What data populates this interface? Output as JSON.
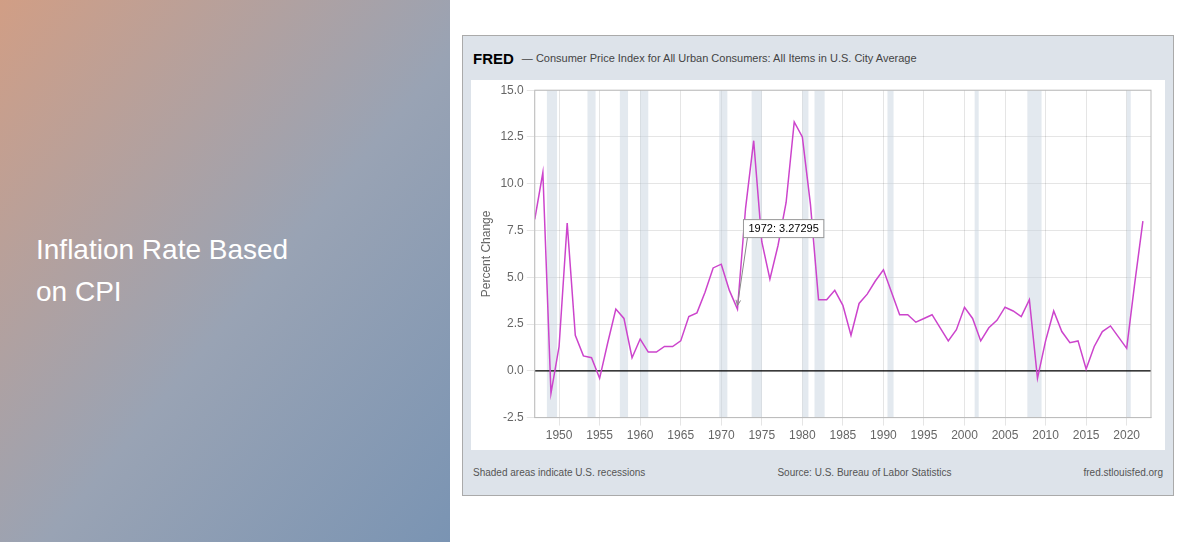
{
  "chart_data": {
    "type": "line",
    "title": "Inflation Rate Based\non CPI",
    "subtitle": [
      "FRED",
      "— Consumer Price Index for All Urban Consumers: All Items in U.S. City Average"
    ],
    "y_label": "Percent Change",
    "footer": [
      "Shaded areas indicate U.S. recessions",
      "Source: U.S. Bureau of Labor Statistics",
      "fred.stlouisfed.org"
    ],
    "x": [
      1947,
      1948,
      1949,
      1950,
      1951,
      1952,
      1953,
      1954,
      1955,
      1956,
      1957,
      1958,
      1959,
      1960,
      1961,
      1962,
      1963,
      1964,
      1965,
      1966,
      1967,
      1968,
      1969,
      1970,
      1971,
      1972,
      1973,
      1974,
      1975,
      1976,
      1977,
      1978,
      1979,
      1980,
      1981,
      1982,
      1983,
      1984,
      1985,
      1986,
      1987,
      1988,
      1989,
      1990,
      1991,
      1992,
      1993,
      1994,
      1995,
      1996,
      1997,
      1998,
      1999,
      2000,
      2001,
      2002,
      2003,
      2004,
      2005,
      2006,
      2007,
      2008,
      2009,
      2010,
      2011,
      2012,
      2013,
      2014,
      2015,
      2016,
      2017,
      2018,
      2019,
      2020,
      2021,
      2022
    ],
    "values": [
      8.1,
      10.6,
      -1.2,
      1.3,
      7.9,
      1.9,
      0.8,
      0.7,
      -0.4,
      1.5,
      3.3,
      2.8,
      0.7,
      1.7,
      1.0,
      1.0,
      1.3,
      1.3,
      1.6,
      2.9,
      3.1,
      4.2,
      5.5,
      5.7,
      4.3,
      3.3,
      8.7,
      12.3,
      6.9,
      4.9,
      6.7,
      9.0,
      13.3,
      12.5,
      8.9,
      3.8,
      3.8,
      4.3,
      3.5,
      1.9,
      3.6,
      4.1,
      4.8,
      5.4,
      4.2,
      3.0,
      3.0,
      2.6,
      2.8,
      3.0,
      2.3,
      1.6,
      2.2,
      3.4,
      2.8,
      1.6,
      2.3,
      2.7,
      3.4,
      3.2,
      2.9,
      3.8,
      -0.4,
      1.6,
      3.2,
      2.1,
      1.5,
      1.6,
      0.1,
      1.3,
      2.1,
      2.4,
      1.8,
      1.2,
      4.7,
      8.0
    ],
    "color": "#cc44cc",
    "xlim": [
      1947,
      2023
    ],
    "xticks": [
      1950,
      1955,
      1960,
      1965,
      1970,
      1975,
      1980,
      1985,
      1990,
      1995,
      2000,
      2005,
      2010,
      2015,
      2020
    ],
    "ylim": [
      -2.5,
      15.0
    ],
    "yticks": [
      -2.5,
      {
        "value": 0,
        "label": "0.0"
      },
      2.5,
      {
        "value": 5,
        "label": "5.0"
      },
      7.5,
      {
        "value": 10,
        "label": "10.0"
      },
      12.5,
      {
        "value": 15,
        "label": "15.0"
      }
    ],
    "grid": true,
    "reference_lines": [
      0
    ],
    "recession_bands": [
      [
        1948.5,
        1949.75
      ],
      [
        1953.5,
        1954.5
      ],
      [
        1957.5,
        1958.5
      ],
      [
        1960.0,
        1961.0
      ],
      [
        1969.75,
        1970.75
      ],
      [
        1973.75,
        1975.0
      ],
      [
        1980.0,
        1980.75
      ],
      [
        1981.5,
        1982.75
      ],
      [
        1990.5,
        1991.25
      ],
      [
        2001.25,
        2001.75
      ],
      [
        2007.75,
        2009.5
      ],
      [
        2020.0,
        2020.5
      ]
    ],
    "recession_color": "#c8d4e0",
    "annotations": [
      {
        "text": "1972: 3.27295",
        "x": 1972,
        "y": 3.27295
      }
    ]
  }
}
